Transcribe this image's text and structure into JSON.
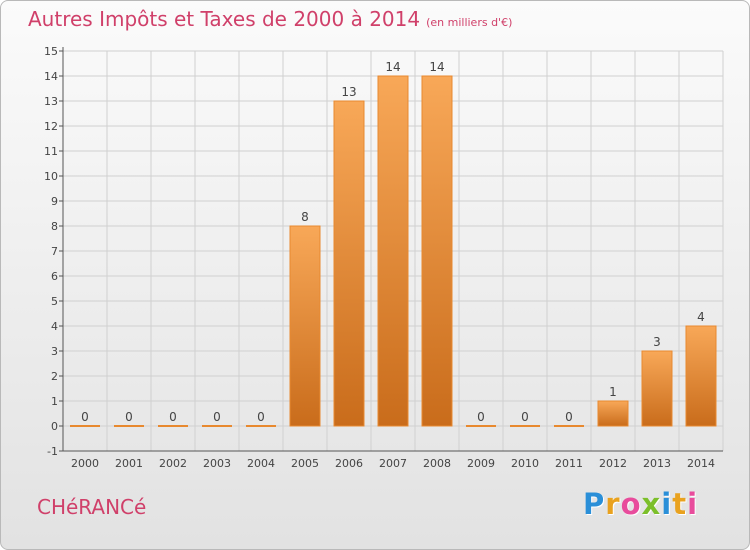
{
  "title": {
    "main": "Autres Impôts et Taxes de 2000 à 2014",
    "sub": "(en milliers d'€)"
  },
  "commune": "CHéRANCé",
  "brand": {
    "letters": [
      "P",
      "r",
      "o",
      "x",
      "i",
      "t",
      "i"
    ],
    "colors": [
      "#2a8fd8",
      "#e9a21f",
      "#e84c9c",
      "#7cbf2a",
      "#2a8fd8",
      "#e9a21f",
      "#e84c9c"
    ]
  },
  "chart_data": {
    "type": "bar",
    "categories": [
      "2000",
      "2001",
      "2002",
      "2003",
      "2004",
      "2005",
      "2006",
      "2007",
      "2008",
      "2009",
      "2010",
      "2011",
      "2012",
      "2013",
      "2014"
    ],
    "values": [
      0,
      0,
      0,
      0,
      0,
      8,
      13,
      14,
      14,
      0,
      0,
      0,
      1,
      3,
      4
    ],
    "data_labels": [
      "0",
      "0",
      "0",
      "0",
      "0",
      "8",
      "13",
      "14",
      "14",
      "0",
      "0",
      "0",
      "1",
      "3",
      "4"
    ],
    "ylim": [
      -1,
      15
    ],
    "yticks": [
      "-1",
      "0",
      "1",
      "2",
      "3",
      "4",
      "5",
      "6",
      "7",
      "8",
      "9",
      "10",
      "11",
      "12",
      "13",
      "14",
      "15"
    ],
    "grid": true,
    "xlabel": "",
    "ylabel": "",
    "colors": {
      "bar_top": "#f8a858",
      "bar_bottom": "#c96c1b",
      "bar_edge": "#e8892f",
      "grid": "#d0d0d0",
      "axis": "#555555",
      "label": "#444444"
    }
  }
}
